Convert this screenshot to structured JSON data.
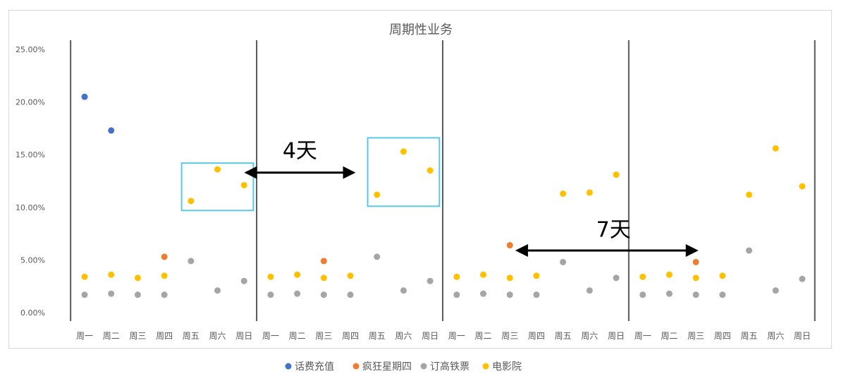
{
  "chart_data": {
    "type": "scatter",
    "title": "周期性业务",
    "ylim": [
      0,
      0.25
    ],
    "y_ticks": [
      "0.00%",
      "5.00%",
      "10.00%",
      "15.00%",
      "20.00%",
      "25.00%"
    ],
    "y_tick_values": [
      0,
      0.05,
      0.1,
      0.15,
      0.2,
      0.25
    ],
    "categories": [
      "周一",
      "周二",
      "周三",
      "周四",
      "周五",
      "周六",
      "周日",
      "周一",
      "周二",
      "周三",
      "周四",
      "周五",
      "周六",
      "周日",
      "周一",
      "周二",
      "周三",
      "周四",
      "周五",
      "周六",
      "周日",
      "周一",
      "周二",
      "周三",
      "周四",
      "周五",
      "周六",
      "周日"
    ],
    "series": [
      {
        "name": "话费充值",
        "color": "#4472c4",
        "values": [
          0.205,
          0.173,
          null,
          null,
          null,
          null,
          null,
          null,
          null,
          null,
          null,
          null,
          null,
          null,
          null,
          null,
          null,
          null,
          null,
          null,
          null,
          null,
          null,
          null,
          null,
          null,
          null,
          null
        ]
      },
      {
        "name": "疯狂星期四",
        "color": "#ed7d31",
        "values": [
          null,
          null,
          null,
          0.053,
          null,
          null,
          null,
          null,
          null,
          0.049,
          null,
          null,
          null,
          null,
          null,
          null,
          0.064,
          null,
          null,
          null,
          null,
          null,
          null,
          0.048,
          null,
          null,
          null,
          null
        ]
      },
      {
        "name": "订高铁票",
        "color": "#a5a5a5",
        "values": [
          0.017,
          0.018,
          0.017,
          0.017,
          0.049,
          0.021,
          0.03,
          0.017,
          0.018,
          0.017,
          0.017,
          0.053,
          0.021,
          0.03,
          0.017,
          0.018,
          0.017,
          0.017,
          0.048,
          0.021,
          0.033,
          0.017,
          0.018,
          0.017,
          0.017,
          0.059,
          0.021,
          0.032
        ]
      },
      {
        "name": "电影院",
        "color": "#ffc000",
        "values": [
          0.034,
          0.036,
          0.033,
          0.035,
          0.106,
          0.136,
          0.121,
          0.034,
          0.036,
          0.033,
          0.035,
          0.112,
          0.153,
          0.135,
          0.034,
          0.036,
          0.033,
          0.035,
          0.113,
          0.114,
          0.131,
          0.034,
          0.036,
          0.033,
          0.035,
          0.112,
          0.156,
          0.12
        ]
      }
    ],
    "week_separators_after_category": [
      -1,
      6,
      13,
      20,
      27
    ],
    "highlight_boxes": [
      {
        "from_category": 4,
        "to_category": 6,
        "y_top": 0.142,
        "y_bottom": 0.097,
        "color": "#5bc8e8"
      },
      {
        "from_category": 11,
        "to_category": 13,
        "y_top": 0.166,
        "y_bottom": 0.101,
        "color": "#5bc8e8"
      }
    ],
    "annotations": [
      {
        "text": "4天",
        "arrow_from_category": 6.1,
        "arrow_to_category": 10.1,
        "y": 0.133,
        "text_y": 0.155,
        "text_category": 8.1
      },
      {
        "text": "7天",
        "arrow_from_category": 16.3,
        "arrow_to_category": 23.0,
        "y": 0.059,
        "text_y": 0.08,
        "text_category": 19.9
      }
    ],
    "legend": "bottom",
    "grid": false
  }
}
